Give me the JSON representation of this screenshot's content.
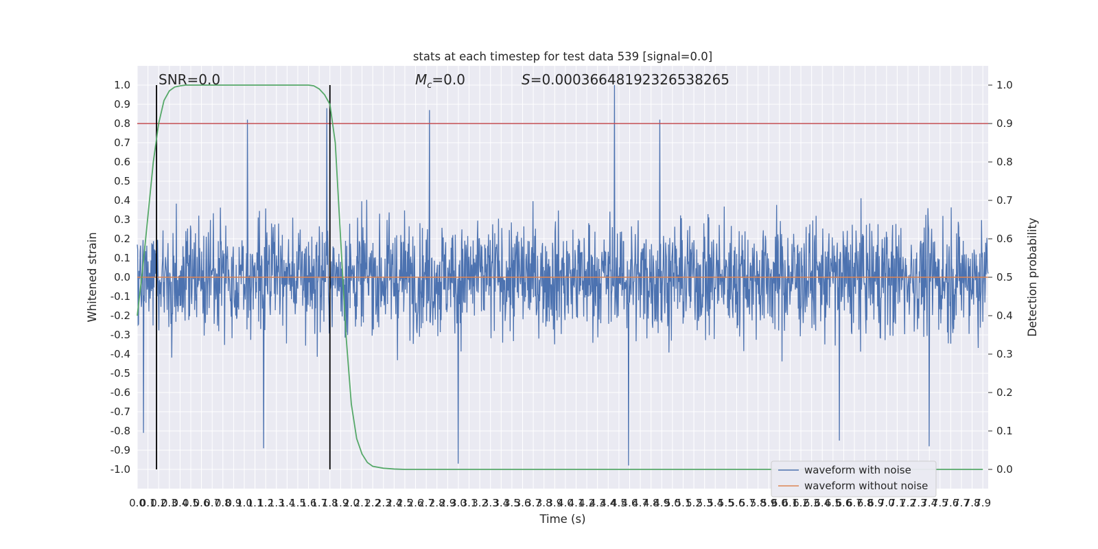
{
  "chart_data": {
    "type": "line",
    "title": "stats at each timestep for test data 539 [signal=0.0]",
    "xlabel": "Time (s)",
    "ylabel": "Whitened strain",
    "y2label": "Detection probability",
    "xlim": [
      0.0,
      7.95
    ],
    "ylim": [
      -1.1,
      1.1
    ],
    "y2lim": [
      -0.05,
      1.05
    ],
    "x_tick_step": 0.1,
    "x_tick_labels": [
      "0.0",
      "0.1",
      "0.2",
      "0.3",
      "0.4",
      "0.5",
      "0.6",
      "0.7",
      "0.8",
      "0.9",
      "1.0",
      "1.1",
      "1.2",
      "1.3",
      "1.4",
      "1.5",
      "1.6",
      "1.7",
      "1.8",
      "1.9",
      "2.0",
      "2.1",
      "2.2",
      "2.3",
      "2.4",
      "2.5",
      "2.6",
      "2.7",
      "2.8",
      "2.9",
      "3.0",
      "3.1",
      "3.2",
      "3.3",
      "3.4",
      "3.5",
      "3.6",
      "3.7",
      "3.8",
      "3.9",
      "4.0",
      "4.1",
      "4.2",
      "4.3",
      "4.4",
      "4.5",
      "4.6",
      "4.7",
      "4.8",
      "4.9",
      "5.0",
      "5.1",
      "5.2",
      "5.3",
      "5.4",
      "5.5",
      "5.6",
      "5.7",
      "5.8",
      "5.9",
      "6.0",
      "6.1",
      "6.2",
      "6.3",
      "6.4",
      "6.5",
      "6.6",
      "6.7",
      "6.8",
      "6.9",
      "7.0",
      "7.1",
      "7.2",
      "7.3",
      "7.4",
      "7.5",
      "7.6",
      "7.7",
      "7.8",
      "7.9"
    ],
    "y_tick_labels": [
      "1.0",
      "0.9",
      "0.8",
      "0.7",
      "0.6",
      "0.5",
      "0.4",
      "0.3",
      "0.2",
      "0.1",
      "0.0",
      "-0.1",
      "-0.2",
      "-0.3",
      "-0.4",
      "-0.5",
      "-0.6",
      "-0.7",
      "-0.8",
      "-0.9",
      "-1.0"
    ],
    "y_tick_values": [
      1.0,
      0.9,
      0.8,
      0.7,
      0.6,
      0.5,
      0.4,
      0.3,
      0.2,
      0.1,
      0.0,
      -0.1,
      -0.2,
      -0.3,
      -0.4,
      -0.5,
      -0.6,
      -0.7,
      -0.8,
      -0.9,
      -1.0
    ],
    "y2_tick_labels": [
      "1.0",
      "0.9",
      "0.8",
      "0.7",
      "0.6",
      "0.5",
      "0.4",
      "0.3",
      "0.2",
      "0.1",
      "0.0"
    ],
    "y2_tick_values": [
      1.0,
      0.9,
      0.8,
      0.7,
      0.6,
      0.5,
      0.4,
      0.3,
      0.2,
      0.1,
      0.0
    ],
    "annotations": {
      "snr": "SNR=0.0",
      "mc": "=0.0",
      "mc_symbol": "M",
      "mc_sub": "c",
      "s": "=0.00036648192326538265",
      "s_symbol": "S"
    },
    "vertical_lines_x": [
      0.18,
      1.8
    ],
    "horizontal_threshold_y2": 0.9,
    "noisy_waveform": {
      "name": "waveform with noise",
      "color": "#4c72b0",
      "sample_count": 2048,
      "envelope_max": 1.0,
      "envelope_min": -0.98,
      "peaks": [
        {
          "x": 0.06,
          "y": -0.81
        },
        {
          "x": 1.03,
          "y": 0.82
        },
        {
          "x": 1.77,
          "y": 0.88
        },
        {
          "x": 2.73,
          "y": 0.87
        },
        {
          "x": 3.0,
          "y": -0.97
        },
        {
          "x": 4.46,
          "y": 1.0
        },
        {
          "x": 4.59,
          "y": -0.98
        },
        {
          "x": 4.88,
          "y": 0.82
        },
        {
          "x": 6.56,
          "y": -0.85
        },
        {
          "x": 7.4,
          "y": -0.88
        },
        {
          "x": 1.18,
          "y": -0.89
        }
      ]
    },
    "clean_waveform": {
      "name": "waveform without noise",
      "color": "#dd8452",
      "y": 0.0
    },
    "detection_probability": {
      "color": "#55a868",
      "x": [
        0.0,
        0.05,
        0.1,
        0.15,
        0.2,
        0.25,
        0.3,
        0.35,
        0.4,
        0.45,
        0.5,
        0.6,
        0.8,
        1.0,
        1.2,
        1.4,
        1.5,
        1.6,
        1.65,
        1.7,
        1.75,
        1.8,
        1.85,
        1.9,
        1.95,
        2.0,
        2.05,
        2.1,
        2.15,
        2.2,
        2.3,
        2.4,
        2.5,
        2.6,
        3.0,
        4.0,
        5.0,
        6.0,
        7.0,
        7.9
      ],
      "y": [
        0.4,
        0.52,
        0.66,
        0.8,
        0.9,
        0.96,
        0.985,
        0.995,
        0.998,
        1.0,
        1.0,
        1.0,
        1.0,
        1.0,
        1.0,
        1.0,
        1.0,
        1.0,
        0.998,
        0.99,
        0.975,
        0.95,
        0.85,
        0.6,
        0.35,
        0.17,
        0.08,
        0.04,
        0.018,
        0.008,
        0.003,
        0.001,
        0.0,
        0.0,
        0.0,
        0.0,
        0.0,
        0.0,
        0.0,
        0.0
      ]
    },
    "threshold_color": "#c44e52",
    "vline_color": "#000000",
    "grid": true,
    "legend_position": "lower-right",
    "legend": [
      "waveform with noise",
      "waveform without noise"
    ]
  }
}
